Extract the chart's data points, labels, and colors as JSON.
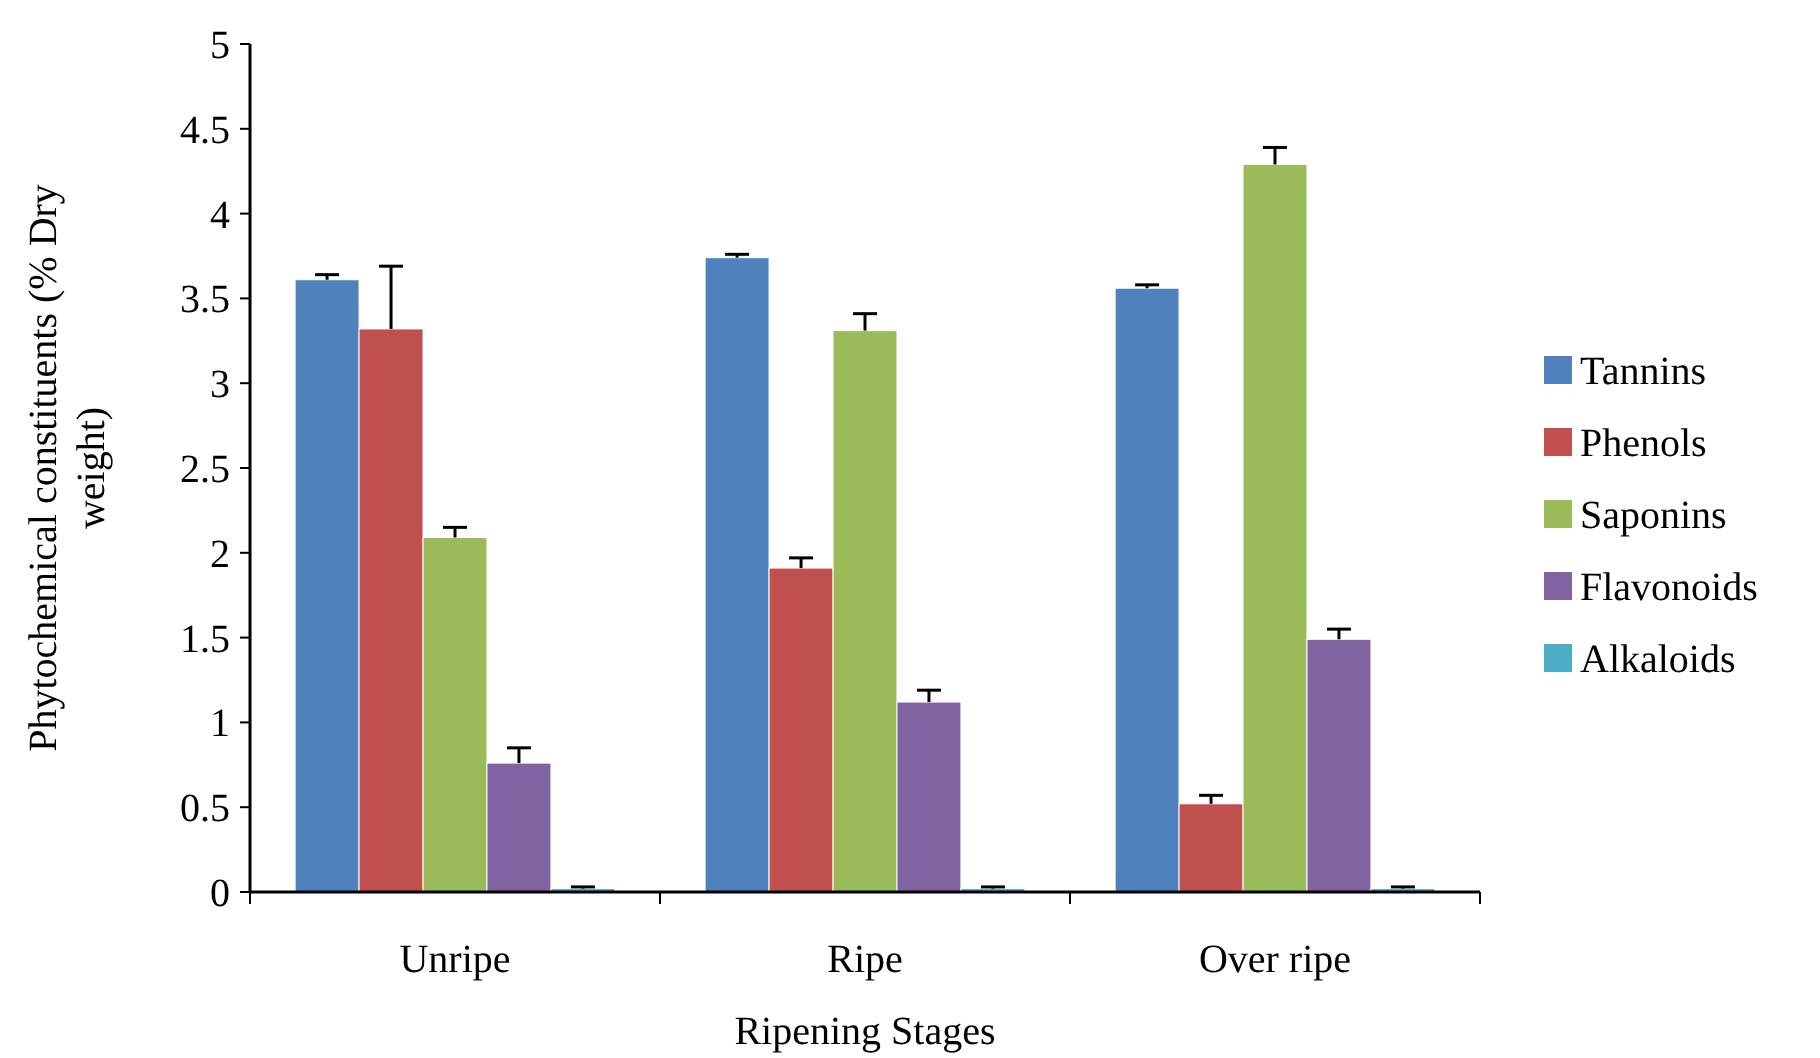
{
  "chart_data": {
    "type": "bar",
    "xlabel": "Ripening Stages",
    "ylabel": "Phytochemical constituents (% Dry weight)",
    "categories": [
      "Unripe",
      "Ripe",
      "Over ripe"
    ],
    "series": [
      {
        "name": "Tannins",
        "color": "#4f81bd",
        "values": [
          3.61,
          3.74,
          3.56
        ],
        "errors": [
          0.03,
          0.02,
          0.02
        ]
      },
      {
        "name": "Phenols",
        "color": "#c0504d",
        "values": [
          3.32,
          1.91,
          0.52
        ],
        "errors": [
          0.37,
          0.06,
          0.05
        ]
      },
      {
        "name": "Saponins",
        "color": "#9bbb59",
        "values": [
          2.09,
          3.31,
          4.29
        ],
        "errors": [
          0.06,
          0.1,
          0.1
        ]
      },
      {
        "name": "Flavonoids",
        "color": "#8064a2",
        "values": [
          0.76,
          1.12,
          1.49
        ],
        "errors": [
          0.09,
          0.07,
          0.06
        ]
      },
      {
        "name": "Alkaloids",
        "color": "#4bacc6",
        "values": [
          0.02,
          0.02,
          0.02
        ],
        "errors": [
          0.01,
          0.01,
          0.01
        ]
      }
    ],
    "ylim": [
      0,
      5
    ],
    "yticks": [
      0,
      0.5,
      1,
      1.5,
      2,
      2.5,
      3,
      3.5,
      4,
      4.5,
      5
    ],
    "grid": false,
    "legend": "right"
  }
}
